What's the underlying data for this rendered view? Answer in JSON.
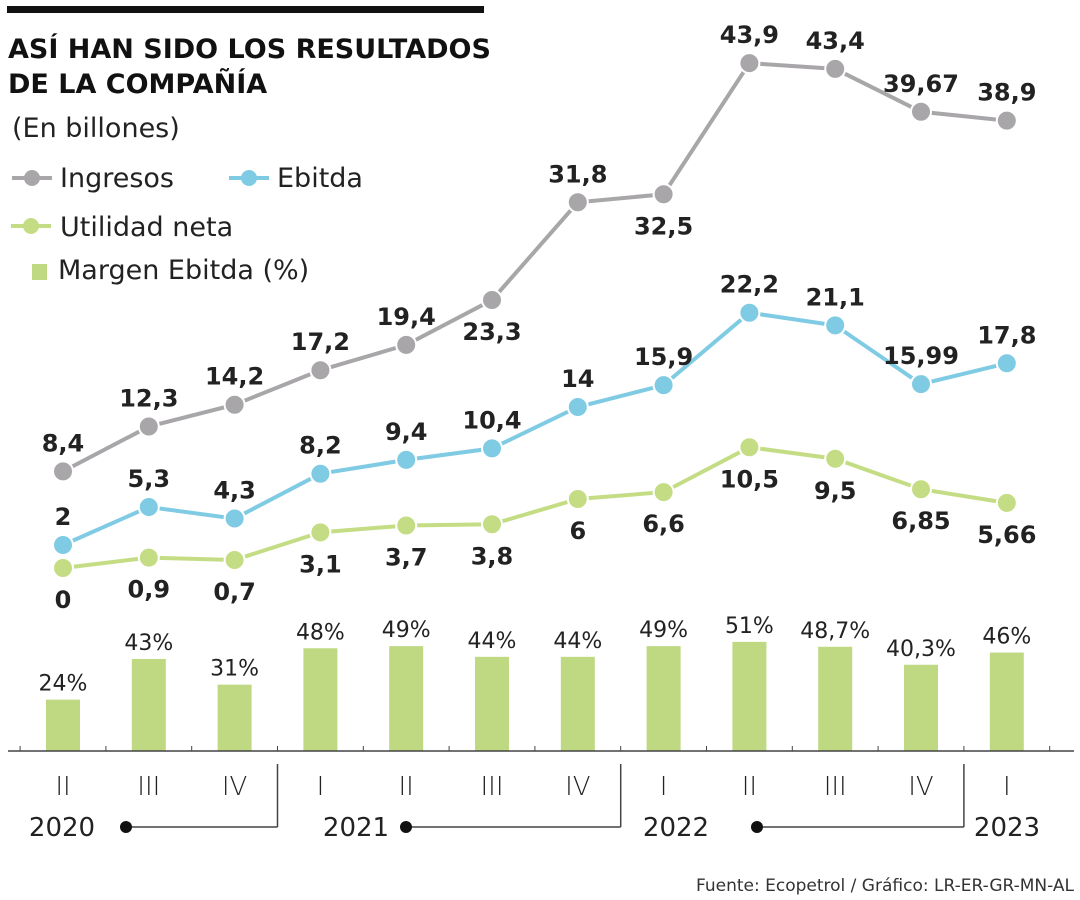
{
  "chart_data": {
    "type": "line",
    "title": "ASÍ HAN SIDO LOS RESULTADOS DE LA COMPAÑÍA",
    "title_lines": [
      "ASÍ HAN SIDO LOS RESULTADOS",
      "DE LA COMPAÑÍA"
    ],
    "subtitle": "(En billones)",
    "categories": [
      "II",
      "III",
      "IV",
      "I",
      "II",
      "III",
      "IV",
      "I",
      "II",
      "III",
      "IV",
      "I"
    ],
    "years": [
      {
        "label": "2020",
        "quarters": [
          "II",
          "III",
          "IV"
        ]
      },
      {
        "label": "2021",
        "quarters": [
          "I",
          "II",
          "III",
          "IV"
        ]
      },
      {
        "label": "2022",
        "quarters": [
          "I",
          "II",
          "III",
          "IV"
        ]
      },
      {
        "label": "2023",
        "quarters": [
          "I"
        ]
      }
    ],
    "series": [
      {
        "name": "Ingresos",
        "color": "#a8a6a9",
        "values": [
          8.4,
          12.3,
          14.2,
          17.2,
          19.4,
          23.3,
          31.8,
          32.5,
          43.9,
          43.4,
          39.67,
          38.9
        ],
        "labels": [
          "8,4",
          "12,3",
          "14,2",
          "17,2",
          "19,4",
          "23,3",
          "31,8",
          "32,5",
          "43,9",
          "43,4",
          "39,67",
          "38,9"
        ]
      },
      {
        "name": "Ebitda",
        "color": "#80cbe4",
        "values": [
          2,
          5.3,
          4.3,
          8.2,
          9.4,
          10.4,
          14,
          15.9,
          22.2,
          21.1,
          15.99,
          17.8
        ],
        "labels": [
          "2",
          "5,3",
          "4,3",
          "8,2",
          "9,4",
          "10,4",
          "14",
          "15,9",
          "22,2",
          "21,1",
          "15,99",
          "17,8"
        ]
      },
      {
        "name": "Utilidad neta",
        "color": "#c4dd85",
        "values": [
          0,
          0.9,
          0.7,
          3.1,
          3.7,
          3.8,
          6,
          6.6,
          10.5,
          9.5,
          6.85,
          5.66
        ],
        "labels": [
          "0",
          "0,9",
          "0,7",
          "3,1",
          "3,7",
          "3,8",
          "6",
          "6,6",
          "10,5",
          "9,5",
          "6,85",
          "5,66"
        ]
      }
    ],
    "bars": {
      "name": "Margen Ebitda (%)",
      "color": "#bed981",
      "values": [
        24,
        43,
        31,
        48,
        49,
        44,
        44,
        49,
        51,
        48.7,
        40.3,
        46
      ],
      "labels": [
        "24%",
        "43%",
        "31%",
        "48%",
        "49%",
        "44%",
        "44%",
        "49%",
        "51%",
        "48,7%",
        "40,3%",
        "46%"
      ]
    },
    "legend_placement": "top-left",
    "grid": false,
    "source": "Fuente: Ecopetrol / Gráfico: LR-ER-GR-MN-AL"
  }
}
